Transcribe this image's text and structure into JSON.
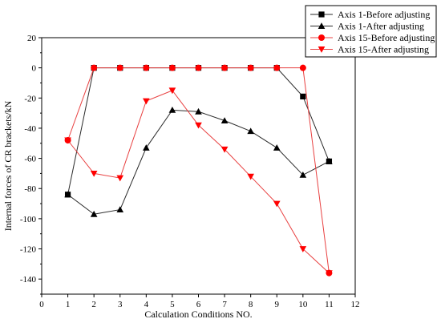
{
  "chart_data": {
    "type": "line",
    "xlabel": "Calculation Conditions NO.",
    "ylabel": "Internal forces of CR brackets/kN",
    "xlim": [
      0,
      12
    ],
    "ylim": [
      -150,
      20
    ],
    "xticks": [
      0,
      1,
      2,
      3,
      4,
      5,
      6,
      7,
      8,
      9,
      10,
      11,
      12
    ],
    "yticks": [
      20,
      0,
      -20,
      -40,
      -60,
      -80,
      -100,
      -120,
      -140
    ],
    "grid": false,
    "legend_position": "top-right",
    "x": [
      1,
      2,
      3,
      4,
      5,
      6,
      7,
      8,
      9,
      10,
      11
    ],
    "series": [
      {
        "name": "Axis 1-Before adjusting",
        "marker": "square",
        "color": "#000000",
        "line_color": "#2a2a2a",
        "values": [
          -84,
          0,
          0,
          0,
          0,
          0,
          0,
          0,
          0,
          -19,
          -62
        ]
      },
      {
        "name": "Axis 1-After adjusting",
        "marker": "triangle-up",
        "color": "#000000",
        "line_color": "#2a2a2a",
        "values": [
          -84,
          -97,
          -94,
          -53,
          -28,
          -29,
          -35,
          -42,
          -53,
          -71,
          -62
        ]
      },
      {
        "name": "Axis 15-Before adjusting",
        "marker": "circle",
        "color": "#ff0000",
        "line_color": "#e84040",
        "values": [
          -48,
          0,
          0,
          0,
          0,
          0,
          0,
          0,
          0,
          0,
          -136
        ]
      },
      {
        "name": "Axis 15-After adjusting",
        "marker": "triangle-down",
        "color": "#ff0000",
        "line_color": "#e84040",
        "values": [
          -48,
          -70,
          -73,
          -22,
          -15,
          -38,
          -54,
          -72,
          -90,
          -120,
          -136
        ]
      }
    ]
  }
}
